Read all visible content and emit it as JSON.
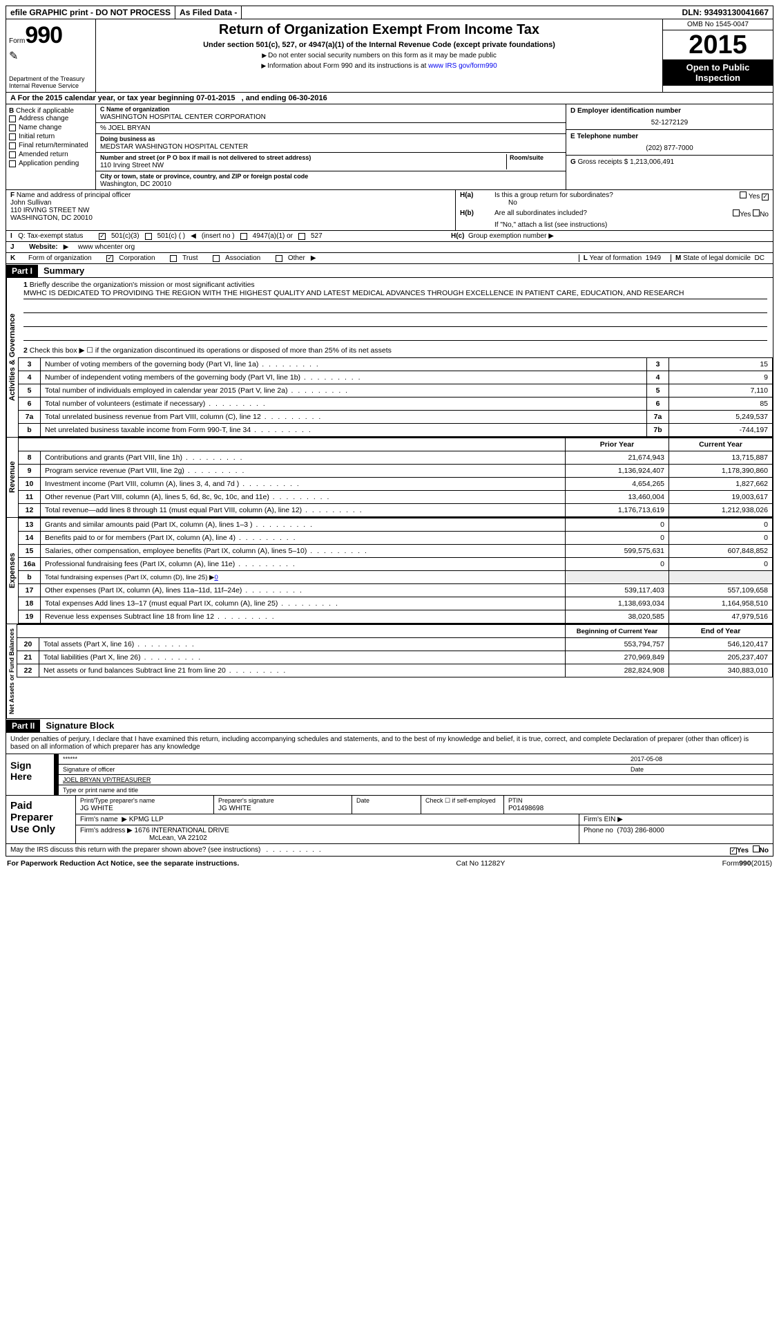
{
  "topbar": {
    "efile": "efile GRAPHIC print - DO NOT PROCESS",
    "asfiled": "As Filed Data -",
    "dln_lbl": "DLN:",
    "dln": "93493130041667"
  },
  "header": {
    "form": "Form",
    "num": "990",
    "dept": "Department of the Treasury",
    "irs": "Internal Revenue Service",
    "title": "Return of Organization Exempt From Income Tax",
    "subtitle": "Under section 501(c), 527, or 4947(a)(1) of the Internal Revenue Code (except private foundations)",
    "instr1": "Do not enter social security numbers on this form as it may be made public",
    "instr2": "Information about Form 990 and its instructions is at",
    "instr2_link": "www IRS gov/form990",
    "omb": "OMB No 1545-0047",
    "year": "2015",
    "open": "Open to Public Inspection"
  },
  "A": {
    "text": "For the 2015 calendar year, or tax year beginning 07-01-2015",
    "text2": ", and ending 06-30-2016"
  },
  "B": {
    "label": "Check if applicable",
    "items": [
      "Address change",
      "Name change",
      "Initial return",
      "Final return/terminated",
      "Amended return",
      "Application pending"
    ]
  },
  "C": {
    "lbl_name": "Name of organization",
    "name": "WASHINGTON HOSPITAL CENTER CORPORATION",
    "care": "% JOEL BRYAN",
    "lbl_dba": "Doing business as",
    "dba": "MEDSTAR WASHINGTON HOSPITAL CENTER",
    "lbl_street": "Number and street (or P O  box if mail is not delivered to street address)",
    "lbl_room": "Room/suite",
    "street": "110 Irving Street NW",
    "lbl_city": "City or town, state or province, country, and ZIP or foreign postal code",
    "city": "Washington, DC  20010"
  },
  "D": {
    "lbl": "Employer identification number",
    "val": "52-1272129"
  },
  "E": {
    "lbl": "Telephone number",
    "val": "(202) 877-7000"
  },
  "G": {
    "lbl": "Gross receipts $",
    "val": "1,213,006,491"
  },
  "F": {
    "lbl": "Name and address of principal officer",
    "name": "John Sullivan",
    "street": "110 IRVING STREET NW",
    "city": "WASHINGTON, DC  20010"
  },
  "H": {
    "a": "Is this a group return for subordinates?",
    "a_no": "No",
    "b": "Are all subordinates included?",
    "b_note": "If \"No,\" attach a list  (see instructions)",
    "c": "Group exemption number"
  },
  "I": {
    "lbl": "Tax-exempt status",
    "o1": "501(c)(3)",
    "o2": "501(c) (  )",
    "o2a": "(insert no )",
    "o3": "4947(a)(1) or",
    "o4": "527"
  },
  "J": {
    "lbl": "Website:",
    "val": "www whcenter org"
  },
  "K": {
    "lbl": "Form of organization",
    "o1": "Corporation",
    "o2": "Trust",
    "o3": "Association",
    "o4": "Other"
  },
  "L": {
    "lbl": "Year of formation",
    "val": "1949"
  },
  "M": {
    "lbl": "State of legal domicile",
    "val": "DC"
  },
  "partI": {
    "bar": "Part I",
    "title": "Summary"
  },
  "mission": {
    "lbl": "Briefly describe the organization's mission or most significant activities",
    "text": "MWHC IS DEDICATED TO PROVIDING THE REGION WITH THE HIGHEST QUALITY AND LATEST MEDICAL ADVANCES THROUGH EXCELLENCE IN PATIENT CARE, EDUCATION, AND RESEARCH"
  },
  "line2": "Check this box ▶ ☐ if the organization discontinued its operations or disposed of more than 25% of its net assets",
  "gov": [
    {
      "n": "3",
      "d": "Number of voting members of the governing body (Part VI, line 1a)",
      "c": "3",
      "v": "15"
    },
    {
      "n": "4",
      "d": "Number of independent voting members of the governing body (Part VI, line 1b)",
      "c": "4",
      "v": "9"
    },
    {
      "n": "5",
      "d": "Total number of individuals employed in calendar year 2015 (Part V, line 2a)",
      "c": "5",
      "v": "7,110"
    },
    {
      "n": "6",
      "d": "Total number of volunteers (estimate if necessary)",
      "c": "6",
      "v": "85"
    },
    {
      "n": "7a",
      "d": "Total unrelated business revenue from Part VIII, column (C), line 12",
      "c": "7a",
      "v": "5,249,537"
    },
    {
      "n": "b",
      "d": "Net unrelated business taxable income from Form 990-T, line 34",
      "c": "7b",
      "v": "-744,197"
    }
  ],
  "yrhdr": {
    "p": "Prior Year",
    "c": "Current Year"
  },
  "rev": [
    {
      "n": "8",
      "d": "Contributions and grants (Part VIII, line 1h)",
      "p": "21,674,943",
      "c": "13,715,887"
    },
    {
      "n": "9",
      "d": "Program service revenue (Part VIII, line 2g)",
      "p": "1,136,924,407",
      "c": "1,178,390,860"
    },
    {
      "n": "10",
      "d": "Investment income (Part VIII, column (A), lines 3, 4, and 7d )",
      "p": "4,654,265",
      "c": "1,827,662"
    },
    {
      "n": "11",
      "d": "Other revenue (Part VIII, column (A), lines 5, 6d, 8c, 9c, 10c, and 11e)",
      "p": "13,460,004",
      "c": "19,003,617"
    },
    {
      "n": "12",
      "d": "Total revenue—add lines 8 through 11 (must equal Part VIII, column (A), line 12)",
      "p": "1,176,713,619",
      "c": "1,212,938,026"
    }
  ],
  "exp": [
    {
      "n": "13",
      "d": "Grants and similar amounts paid (Part IX, column (A), lines 1–3 )",
      "p": "0",
      "c": "0"
    },
    {
      "n": "14",
      "d": "Benefits paid to or for members (Part IX, column (A), line 4)",
      "p": "0",
      "c": "0"
    },
    {
      "n": "15",
      "d": "Salaries, other compensation, employee benefits (Part IX, column (A), lines 5–10)",
      "p": "599,575,631",
      "c": "607,848,852"
    },
    {
      "n": "16a",
      "d": "Professional fundraising fees (Part IX, column (A), line 11e)",
      "p": "0",
      "c": "0"
    }
  ],
  "exp_b": {
    "n": "b",
    "d": "Total fundraising expenses (Part IX, column (D), line 25) ▶",
    "v": "0"
  },
  "exp2": [
    {
      "n": "17",
      "d": "Other expenses (Part IX, column (A), lines 11a–11d, 11f–24e)",
      "p": "539,117,403",
      "c": "557,109,658"
    },
    {
      "n": "18",
      "d": "Total expenses  Add lines 13–17 (must equal Part IX, column (A), line 25)",
      "p": "1,138,693,034",
      "c": "1,164,958,510"
    },
    {
      "n": "19",
      "d": "Revenue less expenses  Subtract line 18 from line 12",
      "p": "38,020,585",
      "c": "47,979,516"
    }
  ],
  "nethdr": {
    "p": "Beginning of Current Year",
    "c": "End of Year"
  },
  "net": [
    {
      "n": "20",
      "d": "Total assets (Part X, line 16)",
      "p": "553,794,757",
      "c": "546,120,417"
    },
    {
      "n": "21",
      "d": "Total liabilities (Part X, line 26)",
      "p": "270,969,849",
      "c": "205,237,407"
    },
    {
      "n": "22",
      "d": "Net assets or fund balances  Subtract line 21 from line 20",
      "p": "282,824,908",
      "c": "340,883,010"
    }
  ],
  "tabs": {
    "gov": "Activities & Governance",
    "rev": "Revenue",
    "exp": "Expenses",
    "net": "Net Assets or Fund Balances"
  },
  "partII": {
    "bar": "Part II",
    "title": "Signature Block"
  },
  "sig": {
    "decl": "Under penalties of perjury, I declare that I have examined this return, including accompanying schedules and statements, and to the best of my knowledge and belief, it is true, correct, and complete  Declaration of preparer (other than officer) is based on all information of which preparer has any knowledge",
    "sign": "Sign Here",
    "stars": "******",
    "date": "2017-05-08",
    "lbl_sig": "Signature of officer",
    "lbl_date": "Date",
    "name": "JOEL BRYAN  VP/TREASURER",
    "lbl_name": "Type or print name and title"
  },
  "paid": {
    "side": "Paid Preparer Use Only",
    "h1": "Print/Type preparer's name",
    "h2": "Preparer's signature",
    "h3": "Date",
    "h4": "Check ☐ if self-employed",
    "h5": "PTIN",
    "name": "JG WHITE",
    "sig": "JG WHITE",
    "ptin": "P01498698",
    "firm_lbl": "Firm's name",
    "firm": "KPMG LLP",
    "ein_lbl": "Firm's EIN",
    "addr_lbl": "Firm's address",
    "addr": "1676 INTERNATIONAL DRIVE",
    "addr2": "McLean, VA  22102",
    "phone_lbl": "Phone no",
    "phone": "(703) 286-8000"
  },
  "discuss": "May the IRS discuss this return with the preparer shown above? (see instructions)",
  "footer": {
    "l": "For Paperwork Reduction Act Notice, see the separate instructions.",
    "c": "Cat No  11282Y",
    "r": "Form",
    "rn": "990",
    "ry": "(2015)"
  }
}
